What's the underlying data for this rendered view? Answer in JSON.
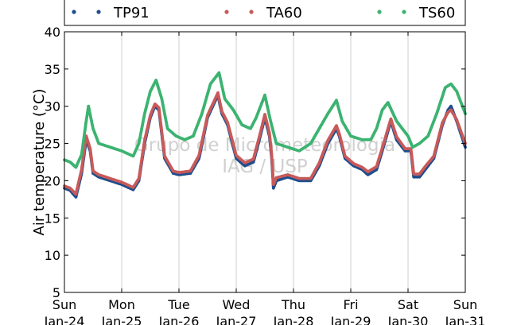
{
  "chart_data": {
    "type": "scatter",
    "ylabel": "Air temperature (°C)",
    "ylim": [
      5,
      40
    ],
    "yticks": [
      5,
      10,
      15,
      20,
      25,
      30,
      35,
      40
    ],
    "xlim_days": [
      0,
      7
    ],
    "x_ticks": [
      {
        "day": "Sun",
        "date": "Jan-24"
      },
      {
        "day": "Mon",
        "date": "Jan-25"
      },
      {
        "day": "Tue",
        "date": "Jan-26"
      },
      {
        "day": "Wed",
        "date": "Jan-27"
      },
      {
        "day": "Thu",
        "date": "Jan-28"
      },
      {
        "day": "Fri",
        "date": "Jan-29"
      },
      {
        "day": "Sat",
        "date": "Jan-30"
      },
      {
        "day": "Sun",
        "date": "Jan-31"
      }
    ],
    "grid": "vertical",
    "legend_position": "top",
    "watermark": [
      "Grupo de Micrometeorologia",
      "IAG / USP"
    ],
    "series": [
      {
        "name": "TP91",
        "color": "#1f4e8c",
        "points": [
          [
            0,
            19.0
          ],
          [
            0.1,
            18.7
          ],
          [
            0.2,
            17.8
          ],
          [
            0.3,
            21.0
          ],
          [
            0.38,
            25.5
          ],
          [
            0.45,
            24.0
          ],
          [
            0.5,
            21.0
          ],
          [
            0.6,
            20.5
          ],
          [
            0.8,
            20.0
          ],
          [
            1.0,
            19.5
          ],
          [
            1.2,
            18.8
          ],
          [
            1.3,
            20.0
          ],
          [
            1.4,
            25.0
          ],
          [
            1.5,
            28.5
          ],
          [
            1.58,
            30.0
          ],
          [
            1.65,
            29.5
          ],
          [
            1.75,
            23.0
          ],
          [
            1.9,
            21.0
          ],
          [
            2.0,
            20.8
          ],
          [
            2.2,
            21.0
          ],
          [
            2.35,
            23.0
          ],
          [
            2.5,
            28.5
          ],
          [
            2.68,
            31.5
          ],
          [
            2.75,
            29.0
          ],
          [
            2.85,
            27.5
          ],
          [
            3.0,
            23.0
          ],
          [
            3.15,
            22.0
          ],
          [
            3.3,
            22.5
          ],
          [
            3.42,
            26.0
          ],
          [
            3.5,
            28.5
          ],
          [
            3.58,
            26.0
          ],
          [
            3.62,
            23.0
          ],
          [
            3.65,
            19.0
          ],
          [
            3.7,
            20.0
          ],
          [
            3.9,
            20.5
          ],
          [
            4.1,
            20.0
          ],
          [
            4.3,
            20.0
          ],
          [
            4.45,
            22.0
          ],
          [
            4.6,
            25.0
          ],
          [
            4.75,
            27.0
          ],
          [
            4.8,
            26.0
          ],
          [
            4.9,
            23.0
          ],
          [
            5.05,
            22.0
          ],
          [
            5.2,
            21.5
          ],
          [
            5.3,
            20.8
          ],
          [
            5.45,
            21.5
          ],
          [
            5.55,
            24.0
          ],
          [
            5.7,
            28.0
          ],
          [
            5.8,
            25.5
          ],
          [
            5.95,
            24.0
          ],
          [
            6.05,
            24.0
          ],
          [
            6.1,
            20.5
          ],
          [
            6.2,
            20.5
          ],
          [
            6.3,
            21.5
          ],
          [
            6.45,
            23.0
          ],
          [
            6.6,
            27.5
          ],
          [
            6.7,
            29.5
          ],
          [
            6.75,
            30.0
          ],
          [
            6.85,
            28.0
          ],
          [
            7.0,
            24.5
          ]
        ]
      },
      {
        "name": "TA60",
        "color": "#c85a5a",
        "points": [
          [
            0,
            19.3
          ],
          [
            0.1,
            19.0
          ],
          [
            0.2,
            18.2
          ],
          [
            0.3,
            21.5
          ],
          [
            0.38,
            26.0
          ],
          [
            0.45,
            24.3
          ],
          [
            0.5,
            21.3
          ],
          [
            0.6,
            20.8
          ],
          [
            0.8,
            20.3
          ],
          [
            1.0,
            19.8
          ],
          [
            1.2,
            19.1
          ],
          [
            1.3,
            20.3
          ],
          [
            1.4,
            25.4
          ],
          [
            1.5,
            28.8
          ],
          [
            1.58,
            30.3
          ],
          [
            1.65,
            29.8
          ],
          [
            1.75,
            23.3
          ],
          [
            1.9,
            21.3
          ],
          [
            2.0,
            21.1
          ],
          [
            2.2,
            21.3
          ],
          [
            2.35,
            23.4
          ],
          [
            2.5,
            28.8
          ],
          [
            2.68,
            31.8
          ],
          [
            2.75,
            29.3
          ],
          [
            2.85,
            27.8
          ],
          [
            3.0,
            23.4
          ],
          [
            3.15,
            22.4
          ],
          [
            3.3,
            22.9
          ],
          [
            3.42,
            26.4
          ],
          [
            3.5,
            28.9
          ],
          [
            3.58,
            26.4
          ],
          [
            3.62,
            23.4
          ],
          [
            3.65,
            19.5
          ],
          [
            3.7,
            20.4
          ],
          [
            3.9,
            20.8
          ],
          [
            4.1,
            20.3
          ],
          [
            4.3,
            20.3
          ],
          [
            4.45,
            22.4
          ],
          [
            4.6,
            25.4
          ],
          [
            4.75,
            27.4
          ],
          [
            4.8,
            26.3
          ],
          [
            4.9,
            23.3
          ],
          [
            5.05,
            22.3
          ],
          [
            5.2,
            21.8
          ],
          [
            5.3,
            21.2
          ],
          [
            5.45,
            21.9
          ],
          [
            5.55,
            24.4
          ],
          [
            5.7,
            28.3
          ],
          [
            5.8,
            25.9
          ],
          [
            5.95,
            24.3
          ],
          [
            6.05,
            24.3
          ],
          [
            6.1,
            20.9
          ],
          [
            6.2,
            20.9
          ],
          [
            6.3,
            21.9
          ],
          [
            6.45,
            23.3
          ],
          [
            6.6,
            27.8
          ],
          [
            6.7,
            29.2
          ],
          [
            6.75,
            29.5
          ],
          [
            6.85,
            28.2
          ],
          [
            7.0,
            25.0
          ]
        ]
      },
      {
        "name": "TS60",
        "color": "#3cb371",
        "points": [
          [
            0,
            22.8
          ],
          [
            0.1,
            22.5
          ],
          [
            0.2,
            21.8
          ],
          [
            0.3,
            23.5
          ],
          [
            0.38,
            28.0
          ],
          [
            0.42,
            30.0
          ],
          [
            0.5,
            27.0
          ],
          [
            0.6,
            25.0
          ],
          [
            0.8,
            24.5
          ],
          [
            1.0,
            24.0
          ],
          [
            1.2,
            23.3
          ],
          [
            1.3,
            25.0
          ],
          [
            1.4,
            29.0
          ],
          [
            1.5,
            32.0
          ],
          [
            1.6,
            33.5
          ],
          [
            1.7,
            31.0
          ],
          [
            1.8,
            27.0
          ],
          [
            1.95,
            26.0
          ],
          [
            2.1,
            25.5
          ],
          [
            2.25,
            26.0
          ],
          [
            2.4,
            29.0
          ],
          [
            2.55,
            33.0
          ],
          [
            2.7,
            34.5
          ],
          [
            2.8,
            31.0
          ],
          [
            2.95,
            29.5
          ],
          [
            3.1,
            27.5
          ],
          [
            3.25,
            27.0
          ],
          [
            3.35,
            28.5
          ],
          [
            3.5,
            31.5
          ],
          [
            3.6,
            28.0
          ],
          [
            3.7,
            25.0
          ],
          [
            3.9,
            24.5
          ],
          [
            4.1,
            24.0
          ],
          [
            4.3,
            25.0
          ],
          [
            4.45,
            27.0
          ],
          [
            4.6,
            29.0
          ],
          [
            4.75,
            30.8
          ],
          [
            4.85,
            28.0
          ],
          [
            5.0,
            26.0
          ],
          [
            5.2,
            25.5
          ],
          [
            5.35,
            25.5
          ],
          [
            5.45,
            27.0
          ],
          [
            5.55,
            29.5
          ],
          [
            5.65,
            30.5
          ],
          [
            5.8,
            28.0
          ],
          [
            6.0,
            26.0
          ],
          [
            6.08,
            24.5
          ],
          [
            6.2,
            25.0
          ],
          [
            6.35,
            26.0
          ],
          [
            6.5,
            29.0
          ],
          [
            6.65,
            32.5
          ],
          [
            6.75,
            33.0
          ],
          [
            6.85,
            32.0
          ],
          [
            7.0,
            29.0
          ]
        ]
      }
    ]
  }
}
